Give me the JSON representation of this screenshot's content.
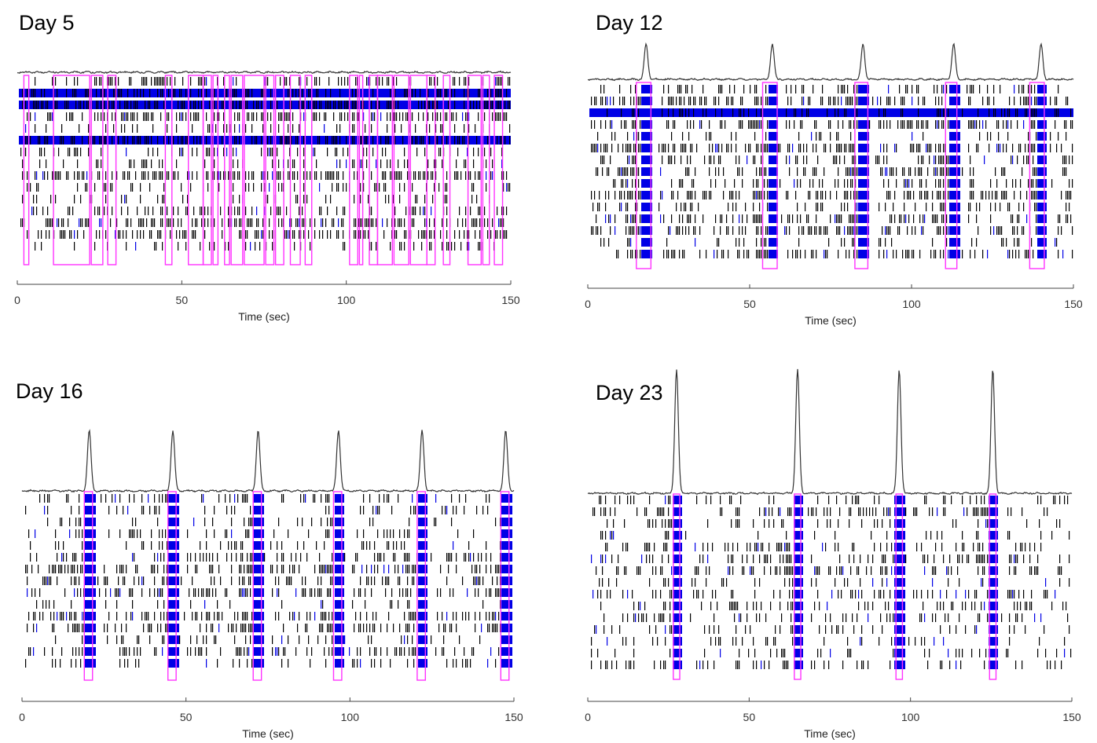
{
  "chart_data": [
    {
      "type": "raster",
      "title": "Day 5",
      "xlabel": "Time (sec)",
      "xlim": [
        0,
        150
      ],
      "xticks": [
        0,
        50,
        100,
        150
      ],
      "rows": 15,
      "density": 0.55,
      "blue_rows": [
        1,
        2,
        5
      ],
      "burst_times": [],
      "highlight_windows": [
        [
          2,
          3.5
        ],
        [
          11,
          22
        ],
        [
          22.5,
          26
        ],
        [
          27.5,
          30
        ],
        [
          45,
          47
        ],
        [
          52,
          56.5
        ],
        [
          56.5,
          59
        ],
        [
          59.5,
          61
        ],
        [
          63,
          64.5
        ],
        [
          65,
          68.5
        ],
        [
          69,
          75
        ],
        [
          75.5,
          78
        ],
        [
          78.5,
          81
        ],
        [
          83,
          86
        ],
        [
          87.5,
          89.5
        ],
        [
          101,
          103.5
        ],
        [
          104,
          105
        ],
        [
          107,
          109.5
        ],
        [
          109.5,
          114
        ],
        [
          114.5,
          119
        ],
        [
          119.5,
          124.5
        ],
        [
          124.5,
          127
        ],
        [
          129.5,
          131.5
        ],
        [
          137,
          141
        ],
        [
          141.5,
          143.5
        ],
        [
          145,
          147.5
        ]
      ],
      "colors": {
        "spike": "#000000",
        "blue": "#0000e6",
        "window": "#ff33ff",
        "trace": "#333333"
      }
    },
    {
      "type": "raster",
      "title": "Day 12",
      "xlabel": "Time (sec)",
      "xlim": [
        0,
        150
      ],
      "xticks": [
        0,
        50,
        100,
        150
      ],
      "rows": 15,
      "density": 0.5,
      "blue_rows": [
        2
      ],
      "burst_times": [
        18,
        57,
        85,
        113,
        140
      ],
      "highlight_windows": [
        [
          15,
          19.5
        ],
        [
          54,
          58.5
        ],
        [
          82.5,
          86.5
        ],
        [
          110.5,
          114
        ],
        [
          136.5,
          141
        ]
      ],
      "colors": {
        "spike": "#000000",
        "blue": "#0000e6",
        "window": "#ff33ff",
        "trace": "#333333"
      }
    },
    {
      "type": "raster",
      "title": "Day 16",
      "xlabel": "Time (sec)",
      "xlim": [
        0,
        150
      ],
      "xticks": [
        0,
        50,
        100,
        150
      ],
      "rows": 15,
      "density": 0.4,
      "blue_rows": [],
      "burst_times": [
        20.5,
        46,
        72,
        96.5,
        122,
        147.5
      ],
      "highlight_windows": [
        [
          19,
          21.5
        ],
        [
          44.5,
          47
        ],
        [
          70.5,
          73
        ],
        [
          95,
          97.5
        ],
        [
          120.5,
          123
        ],
        [
          146,
          148.5
        ]
      ],
      "colors": {
        "spike": "#000000",
        "blue": "#0000e6",
        "window": "#ff33ff",
        "trace": "#333333"
      }
    },
    {
      "type": "raster",
      "title": "Day 23",
      "xlabel": "Time (sec)",
      "xlim": [
        0,
        150
      ],
      "xticks": [
        0,
        50,
        100,
        150
      ],
      "rows": 15,
      "density": 0.3,
      "blue_rows": [],
      "burst_times": [
        27.5,
        65,
        96.5,
        125.5
      ],
      "highlight_windows": [
        [
          26.5,
          28.5
        ],
        [
          64,
          66
        ],
        [
          95.5,
          97.5
        ],
        [
          124.5,
          126.5
        ]
      ],
      "colors": {
        "spike": "#000000",
        "blue": "#0000e6",
        "window": "#ff33ff",
        "trace": "#333333"
      }
    }
  ]
}
